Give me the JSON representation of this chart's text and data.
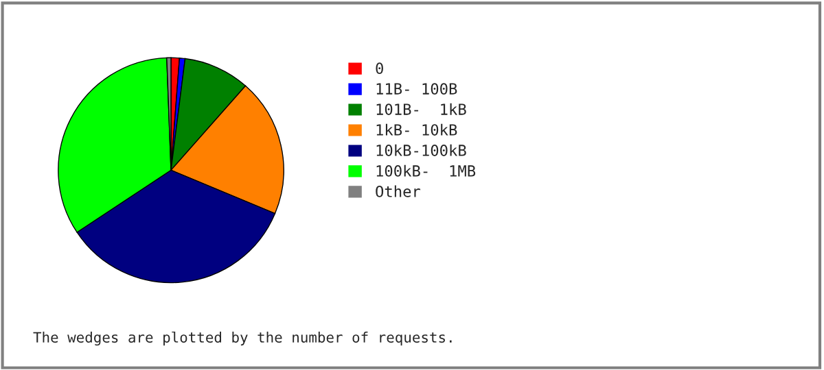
{
  "chart_data": {
    "type": "pie",
    "categories": [
      "0",
      "11B- 100B",
      "101B-  1kB",
      "1kB- 10kB",
      "10kB-100kB",
      "100kB-  1MB",
      "Other"
    ],
    "values": [
      1.2,
      0.8,
      9.5,
      19.8,
      34.4,
      33.7,
      0.6
    ],
    "colors": [
      "#ff0000",
      "#0000ff",
      "#008000",
      "#ff8000",
      "#000080",
      "#00ff00",
      "#808080"
    ],
    "legend": "right",
    "annotations": [
      "The wedges are plotted by the number of requests."
    ]
  }
}
